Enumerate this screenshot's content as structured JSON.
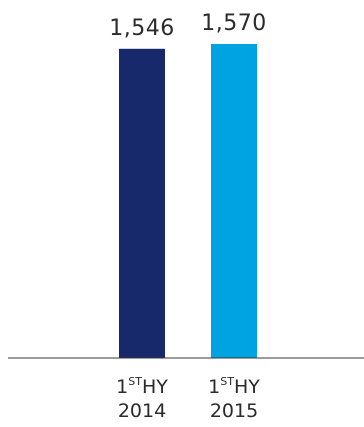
{
  "chart_data": {
    "type": "bar",
    "categories": [
      {
        "prefix": "1",
        "sup": "ST",
        "suffix": "HY",
        "year": "2014"
      },
      {
        "prefix": "1",
        "sup": "ST",
        "suffix": "HY",
        "year": "2015"
      }
    ],
    "values": [
      1546,
      1570
    ],
    "value_labels": [
      "1,546",
      "1,570"
    ],
    "colors": [
      "#17296b",
      "#00a3e2"
    ],
    "title": "",
    "xlabel": "",
    "ylabel": "",
    "ylim": [
      0,
      1600
    ],
    "grid": false,
    "legend": "none"
  }
}
